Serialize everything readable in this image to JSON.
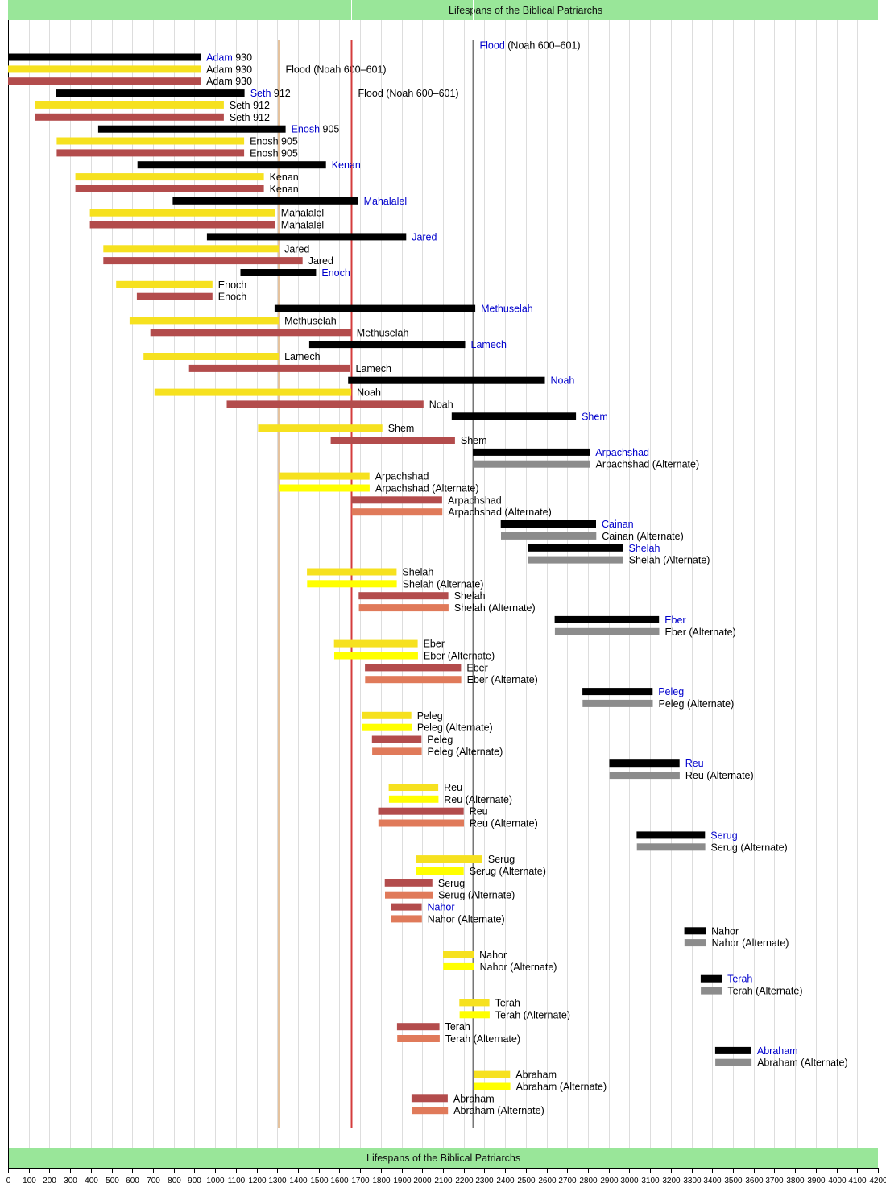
{
  "chart_data": {
    "type": "bar",
    "orientation": "horizontal-timeline",
    "title": "Lifespans of the Biblical Patriarchs",
    "xlim": [
      0,
      4200
    ],
    "x_ticks": [
      0,
      100,
      200,
      300,
      400,
      500,
      600,
      700,
      800,
      900,
      1000,
      1100,
      1200,
      1300,
      1400,
      1500,
      1600,
      1700,
      1800,
      1900,
      2000,
      2100,
      2200,
      2300,
      2400,
      2500,
      2600,
      2700,
      2800,
      2900,
      3000,
      3100,
      3200,
      3300,
      3400,
      3500,
      3600,
      3700,
      3800,
      3900,
      4000,
      4100,
      4200
    ],
    "grid": true,
    "colors": {
      "black": "#000000",
      "gray": "#8c8c8c",
      "yellow": "#f6e11f",
      "yellow_alt": "#ffff00",
      "red": "#b34c4c",
      "red_alt": "#e07a5a",
      "highlight_text": "#0000cc",
      "header_bg": "#99e699",
      "grid": "#dddddd"
    },
    "flood_lines": [
      {
        "year": 1307,
        "color": "#c8843c",
        "label_pre": "",
        "label_main": "Flood (Noah 600–601)",
        "label_row": 1
      },
      {
        "year": 1656,
        "color": "#d43c3c",
        "label_pre": "",
        "label_main": "Flood (Noah 600–601)",
        "label_row": 3
      },
      {
        "year": 2242,
        "color": "#777777",
        "label_pre": "Flood",
        "label_main": " (Noah 600–601)",
        "label_row": -1
      }
    ],
    "rows": [
      {
        "label": "Adam",
        "number": "930",
        "start": 0,
        "end": 930,
        "series": "black",
        "highlight": true
      },
      {
        "label": "Adam",
        "number": "930",
        "start": 0,
        "end": 930,
        "series": "yellow"
      },
      {
        "label": "Adam",
        "number": "930",
        "start": 0,
        "end": 930,
        "series": "red"
      },
      {
        "label": "Seth",
        "number": "912",
        "start": 230,
        "end": 1142,
        "series": "black",
        "highlight": true
      },
      {
        "label": "Seth",
        "number": "912",
        "start": 130,
        "end": 1042,
        "series": "yellow"
      },
      {
        "label": "Seth",
        "number": "912",
        "start": 130,
        "end": 1042,
        "series": "red"
      },
      {
        "label": "Enosh",
        "number": "905",
        "start": 435,
        "end": 1340,
        "series": "black",
        "highlight": true
      },
      {
        "label": "Enosh",
        "number": "905",
        "start": 235,
        "end": 1140,
        "series": "yellow"
      },
      {
        "label": "Enosh",
        "number": "905",
        "start": 235,
        "end": 1140,
        "series": "red"
      },
      {
        "label": "Kenan",
        "start": 625,
        "end": 1535,
        "series": "black",
        "highlight": true
      },
      {
        "label": "Kenan",
        "start": 325,
        "end": 1235,
        "series": "yellow"
      },
      {
        "label": "Kenan",
        "start": 325,
        "end": 1235,
        "series": "red"
      },
      {
        "label": "Mahalalel",
        "start": 795,
        "end": 1690,
        "series": "black",
        "highlight": true
      },
      {
        "label": "Mahalalel",
        "start": 395,
        "end": 1290,
        "series": "yellow"
      },
      {
        "label": "Mahalalel",
        "start": 395,
        "end": 1290,
        "series": "red"
      },
      {
        "label": "Jared",
        "start": 960,
        "end": 1922,
        "series": "black",
        "highlight": true
      },
      {
        "label": "Jared",
        "start": 460,
        "end": 1307,
        "series": "yellow"
      },
      {
        "label": "Jared",
        "start": 460,
        "end": 1422,
        "series": "red"
      },
      {
        "label": "Enoch",
        "start": 1122,
        "end": 1487,
        "series": "black",
        "highlight": true
      },
      {
        "label": "Enoch",
        "start": 522,
        "end": 987,
        "series": "yellow"
      },
      {
        "label": "Enoch",
        "start": 622,
        "end": 987,
        "series": "red"
      },
      {
        "label": "Methuselah",
        "start": 1287,
        "end": 2256,
        "series": "black",
        "highlight": true
      },
      {
        "label": "Methuselah",
        "start": 587,
        "end": 1307,
        "series": "yellow"
      },
      {
        "label": "Methuselah",
        "start": 687,
        "end": 1656,
        "series": "red"
      },
      {
        "label": "Lamech",
        "start": 1454,
        "end": 2207,
        "series": "black",
        "highlight": true
      },
      {
        "label": "Lamech",
        "start": 654,
        "end": 1307,
        "series": "yellow"
      },
      {
        "label": "Lamech",
        "start": 874,
        "end": 1651,
        "series": "red"
      },
      {
        "label": "Noah",
        "start": 1642,
        "end": 2592,
        "series": "black",
        "highlight": true
      },
      {
        "label": "Noah",
        "start": 707,
        "end": 1657,
        "series": "yellow"
      },
      {
        "label": "Noah",
        "start": 1056,
        "end": 2006,
        "series": "red"
      },
      {
        "label": "Shem",
        "start": 2142,
        "end": 2742,
        "series": "black",
        "highlight": true
      },
      {
        "label": "Shem",
        "start": 1207,
        "end": 1807,
        "series": "yellow"
      },
      {
        "label": "Shem",
        "start": 1558,
        "end": 2158,
        "series": "red"
      },
      {
        "label": "Arpachshad",
        "start": 2244,
        "end": 2809,
        "series": "black",
        "highlight": true
      },
      {
        "label": "Arpachshad (Alternate)",
        "start": 2245,
        "end": 2810,
        "series": "gray"
      },
      {
        "label": "Arpachshad",
        "start": 1307,
        "end": 1745,
        "series": "yellow"
      },
      {
        "label": "Arpachshad (Alternate)",
        "start": 1308,
        "end": 1746,
        "series": "yellow_alt"
      },
      {
        "label": "Arpachshad",
        "start": 1658,
        "end": 2096,
        "series": "red"
      },
      {
        "label": "Arpachshad (Alternate)",
        "start": 1659,
        "end": 2097,
        "series": "red_alt"
      },
      {
        "label": "Cainan",
        "start": 2379,
        "end": 2839,
        "series": "black",
        "highlight": true
      },
      {
        "label": "Cainan (Alternate)",
        "start": 2380,
        "end": 2840,
        "series": "gray"
      },
      {
        "label": "Shelah",
        "start": 2509,
        "end": 2969,
        "series": "black",
        "highlight": true
      },
      {
        "label": "Shelah (Alternate)",
        "start": 2510,
        "end": 2970,
        "series": "gray"
      },
      {
        "label": "Shelah",
        "start": 1443,
        "end": 1876,
        "series": "yellow"
      },
      {
        "label": "Shelah (Alternate)",
        "start": 1444,
        "end": 1877,
        "series": "yellow_alt"
      },
      {
        "label": "Shelah",
        "start": 1693,
        "end": 2126,
        "series": "red"
      },
      {
        "label": "Shelah (Alternate)",
        "start": 1694,
        "end": 2127,
        "series": "red_alt"
      },
      {
        "label": "Eber",
        "start": 2639,
        "end": 3143,
        "series": "black",
        "highlight": true
      },
      {
        "label": "Eber (Alternate)",
        "start": 2640,
        "end": 3144,
        "series": "gray"
      },
      {
        "label": "Eber",
        "start": 1574,
        "end": 1978,
        "series": "yellow"
      },
      {
        "label": "Eber (Alternate)",
        "start": 1575,
        "end": 1979,
        "series": "yellow_alt"
      },
      {
        "label": "Eber",
        "start": 1723,
        "end": 2187,
        "series": "red"
      },
      {
        "label": "Eber (Alternate)",
        "start": 1724,
        "end": 2188,
        "series": "red_alt"
      },
      {
        "label": "Peleg",
        "start": 2773,
        "end": 3112,
        "series": "black",
        "highlight": true
      },
      {
        "label": "Peleg (Alternate)",
        "start": 2774,
        "end": 3113,
        "series": "gray"
      },
      {
        "label": "Peleg",
        "start": 1708,
        "end": 1947,
        "series": "yellow"
      },
      {
        "label": "Peleg (Alternate)",
        "start": 1709,
        "end": 1948,
        "series": "yellow_alt"
      },
      {
        "label": "Peleg",
        "start": 1757,
        "end": 1996,
        "series": "red"
      },
      {
        "label": "Peleg (Alternate)",
        "start": 1758,
        "end": 1997,
        "series": "red_alt"
      },
      {
        "label": "Reu",
        "start": 2903,
        "end": 3242,
        "series": "black",
        "highlight": true
      },
      {
        "label": "Reu (Alternate)",
        "start": 2904,
        "end": 3243,
        "series": "gray"
      },
      {
        "label": "Reu",
        "start": 1838,
        "end": 2077,
        "series": "yellow"
      },
      {
        "label": "Reu (Alternate)",
        "start": 1839,
        "end": 2078,
        "series": "yellow_alt"
      },
      {
        "label": "Reu",
        "start": 1787,
        "end": 2200,
        "series": "red"
      },
      {
        "label": "Reu (Alternate)",
        "start": 1788,
        "end": 2201,
        "series": "red_alt"
      },
      {
        "label": "Serug",
        "start": 3035,
        "end": 3365,
        "series": "black",
        "highlight": true
      },
      {
        "label": "Serug (Alternate)",
        "start": 3036,
        "end": 3366,
        "series": "gray"
      },
      {
        "label": "Serug",
        "start": 1970,
        "end": 2290,
        "series": "yellow"
      },
      {
        "label": "Serug (Alternate)",
        "start": 1971,
        "end": 2200,
        "series": "yellow_alt"
      },
      {
        "label": "Serug",
        "start": 1819,
        "end": 2049,
        "series": "red"
      },
      {
        "label": "Serug (Alternate)",
        "start": 1820,
        "end": 2050,
        "series": "red_alt"
      },
      {
        "label": "Nahor",
        "start": 1849,
        "end": 1997,
        "series": "red",
        "highlight": true
      },
      {
        "label": "Nahor (Alternate)",
        "start": 1850,
        "end": 1998,
        "series": "red_alt"
      },
      {
        "label": "Nahor",
        "start": 3265,
        "end": 3368,
        "series": "black"
      },
      {
        "label": "Nahor (Alternate)",
        "start": 3266,
        "end": 3370,
        "series": "gray"
      },
      {
        "label": "Nahor",
        "start": 2100,
        "end": 2248,
        "series": "yellow"
      },
      {
        "label": "Nahor (Alternate)",
        "start": 2101,
        "end": 2250,
        "series": "yellow_alt"
      },
      {
        "label": "Terah",
        "start": 3344,
        "end": 3446,
        "series": "black",
        "highlight": true
      },
      {
        "label": "Terah (Alternate)",
        "start": 3345,
        "end": 3447,
        "series": "gray"
      },
      {
        "label": "Terah",
        "start": 2179,
        "end": 2324,
        "series": "yellow"
      },
      {
        "label": "Terah (Alternate)",
        "start": 2180,
        "end": 2325,
        "series": "yellow_alt"
      },
      {
        "label": "Terah",
        "start": 1878,
        "end": 2083,
        "series": "red"
      },
      {
        "label": "Terah (Alternate)",
        "start": 1879,
        "end": 2084,
        "series": "red_alt"
      },
      {
        "label": "Abraham",
        "start": 3414,
        "end": 3589,
        "series": "black",
        "highlight": true
      },
      {
        "label": "Abraham (Alternate)",
        "start": 3415,
        "end": 3590,
        "series": "gray"
      },
      {
        "label": "Abraham",
        "start": 2249,
        "end": 2424,
        "series": "yellow"
      },
      {
        "label": "Abraham (Alternate)",
        "start": 2250,
        "end": 2425,
        "series": "yellow_alt"
      },
      {
        "label": "Abraham",
        "start": 1948,
        "end": 2123,
        "series": "red"
      },
      {
        "label": "Abraham (Alternate)",
        "start": 1949,
        "end": 2124,
        "series": "red_alt"
      }
    ]
  }
}
